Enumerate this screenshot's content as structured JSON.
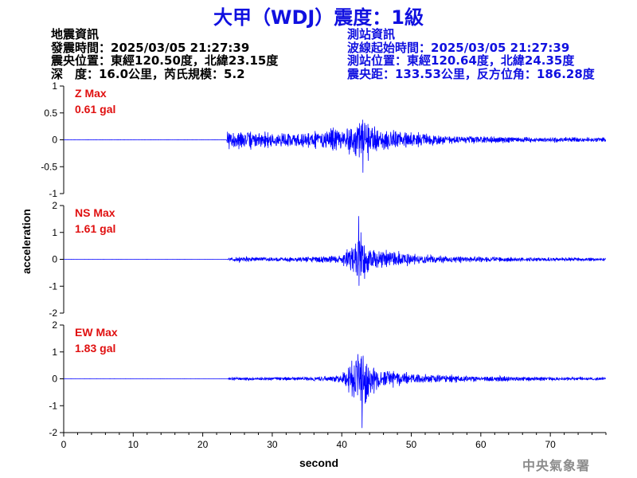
{
  "title": "大甲（WDJ）震度：1級",
  "quake_info": {
    "header": "地震資訊",
    "time": "發震時間：2025/03/05 21:27:39",
    "epicenter": "震央位置：東經120.50度，北緯23.15度",
    "depth_magnitude": "深　度：16.0公里，芮氏規模：5.2"
  },
  "station_info": {
    "header": "測站資訊",
    "wave_start": "波線起始時間：2025/03/05 21:27:39",
    "location": "測站位置：東經120.64度，北緯24.35度",
    "distance": "震央距：133.53公里，反方位角：186.28度"
  },
  "credit": "中央氣象署",
  "colors": {
    "title": "#1010e0",
    "trace": "#0000ff",
    "max_label": "#e01010",
    "station_info": "#1010e0"
  },
  "chart_data": {
    "type": "line",
    "xlabel": "second",
    "ylabel": "acceleration",
    "xlim": [
      0,
      78
    ],
    "xticks": [
      0,
      10,
      20,
      30,
      40,
      50,
      60,
      70
    ],
    "panels": [
      {
        "id": "z",
        "label": "Z Max",
        "max_value": "0.61 gal",
        "ylim": [
          -1,
          1
        ],
        "yticks": [
          -1,
          -0.5,
          0,
          0.5,
          1
        ],
        "envelope": [
          [
            0,
            0.003
          ],
          [
            23.4,
            0.003
          ],
          [
            23.6,
            0.3
          ],
          [
            24.5,
            0.25
          ],
          [
            30,
            0.2
          ],
          [
            35,
            0.22
          ],
          [
            38,
            0.27
          ],
          [
            40,
            0.3
          ],
          [
            42,
            0.5
          ],
          [
            43,
            0.6
          ],
          [
            44.5,
            0.45
          ],
          [
            47,
            0.28
          ],
          [
            50,
            0.22
          ],
          [
            55,
            0.13
          ],
          [
            60,
            0.1
          ],
          [
            65,
            0.08
          ],
          [
            70,
            0.07
          ],
          [
            78,
            0.06
          ]
        ],
        "peak_t": 43.0,
        "seed": 7
      },
      {
        "id": "ns",
        "label": "NS Max",
        "max_value": "1.61 gal",
        "ylim": [
          -2,
          2
        ],
        "yticks": [
          -2,
          -1,
          0,
          1,
          2
        ],
        "envelope": [
          [
            0,
            0.003
          ],
          [
            23.6,
            0.003
          ],
          [
            23.9,
            0.15
          ],
          [
            30,
            0.12
          ],
          [
            35,
            0.15
          ],
          [
            40,
            0.25
          ],
          [
            41.5,
            0.8
          ],
          [
            42.4,
            1.6
          ],
          [
            43.5,
            0.9
          ],
          [
            45,
            0.6
          ],
          [
            47,
            0.45
          ],
          [
            50,
            0.3
          ],
          [
            55,
            0.2
          ],
          [
            60,
            0.15
          ],
          [
            70,
            0.1
          ],
          [
            78,
            0.08
          ]
        ],
        "peak_t": 42.4,
        "seed": 19
      },
      {
        "id": "ew",
        "label": "EW Max",
        "max_value": "1.83 gal",
        "ylim": [
          -2,
          2
        ],
        "yticks": [
          -2,
          -1,
          0,
          1,
          2
        ],
        "envelope": [
          [
            0,
            0.003
          ],
          [
            23.6,
            0.003
          ],
          [
            23.9,
            0.1
          ],
          [
            30,
            0.08
          ],
          [
            35,
            0.1
          ],
          [
            40,
            0.2
          ],
          [
            41,
            0.9
          ],
          [
            42,
            1.4
          ],
          [
            42.9,
            1.8
          ],
          [
            44,
            1.0
          ],
          [
            46,
            0.5
          ],
          [
            50,
            0.3
          ],
          [
            55,
            0.2
          ],
          [
            60,
            0.15
          ],
          [
            70,
            0.1
          ],
          [
            78,
            0.08
          ]
        ],
        "peak_t": 42.9,
        "seed": 41
      }
    ]
  }
}
